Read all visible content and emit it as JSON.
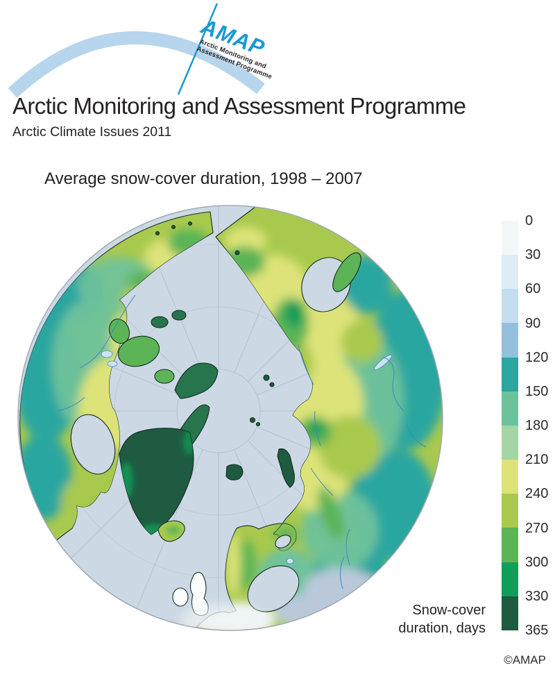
{
  "header": {
    "logo": {
      "acronym": "AMAP",
      "name_line1": "Arctic Monitoring and",
      "name_line2": "Assessment Programme"
    },
    "title": "Arctic Monitoring and Assessment Programme",
    "subtitle": "Arctic Climate Issues 2011"
  },
  "figure": {
    "title": "Average snow-cover duration, 1998 – 2007",
    "attribution": "©AMAP"
  },
  "legend": {
    "title_line1": "Snow-cover",
    "title_line2": "duration, days",
    "ticks": [
      "0",
      "30",
      "60",
      "90",
      "120",
      "150",
      "180",
      "210",
      "240",
      "270",
      "300",
      "330",
      "365"
    ],
    "bands": [
      {
        "from": 0,
        "to": 30,
        "color": "#f3f7f8"
      },
      {
        "from": 30,
        "to": 60,
        "color": "#dcedf7"
      },
      {
        "from": 60,
        "to": 90,
        "color": "#c4def0"
      },
      {
        "from": 90,
        "to": 120,
        "color": "#94c0dd"
      },
      {
        "from": 120,
        "to": 150,
        "color": "#2ba6a0"
      },
      {
        "from": 150,
        "to": 180,
        "color": "#6ec29b"
      },
      {
        "from": 180,
        "to": 210,
        "color": "#a4d5a4"
      },
      {
        "from": 210,
        "to": 240,
        "color": "#dde378"
      },
      {
        "from": 240,
        "to": 270,
        "color": "#a9c94e"
      },
      {
        "from": 270,
        "to": 300,
        "color": "#5cb457"
      },
      {
        "from": 300,
        "to": 330,
        "color": "#119e58"
      },
      {
        "from": 330,
        "to": 365,
        "color": "#1e5b41"
      }
    ]
  },
  "palette": {
    "ocean": "#ccd9e4",
    "rim": "#9fa9b2",
    "grid": "#b6c0ca",
    "coast": "#152a22",
    "river": "#3f88c1",
    "lake": "#cfe2f0",
    "arcblue": "#b7d5ec",
    "logoblue": "#1899d5",
    "b0": "#f3f7f8",
    "b1": "#dcedf7",
    "b2": "#c4def0",
    "b3": "#94c0dd",
    "b4": "#2ba6a0",
    "b5": "#6ec29b",
    "b6": "#a4d5a4",
    "b7": "#dde378",
    "b8": "#a9c94e",
    "b9": "#5cb457",
    "b10": "#119e58",
    "b11": "#1e5b41",
    "midark": "#27754c",
    "paleblue": "#b9c9da",
    "nearwhite": "#eff4f6",
    "whiteland": "#fbfdfd"
  }
}
